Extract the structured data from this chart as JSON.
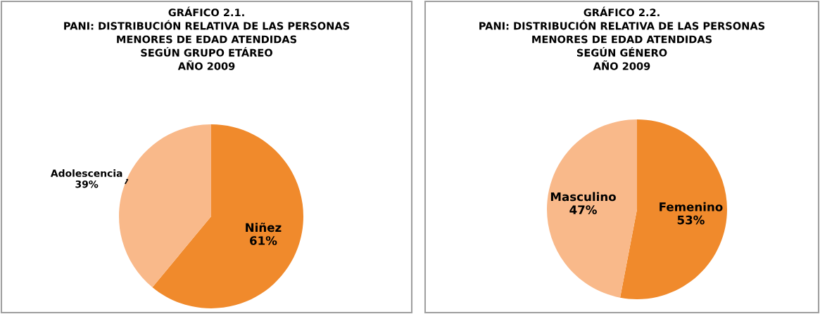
{
  "chart_data": [
    {
      "type": "pie",
      "title": "GRÁFICO 2.1.\nPANI: DISTRIBUCIÓN RELATIVA DE LAS PERSONAS\nMENORES DE EDAD ATENDIDAS\nSEGÚN GRUPO ETÁREO\nAÑO 2009",
      "categories": [
        "Niñez",
        "Adolescencia"
      ],
      "values": [
        61,
        39
      ],
      "colors": [
        "#f08a2c",
        "#f9b98a"
      ],
      "value_labels": [
        "61%",
        "39%"
      ],
      "legend": false
    },
    {
      "type": "pie",
      "title": "GRÁFICO 2.2.\nPANI: DISTRIBUCIÓN RELATIVA DE LAS PERSONAS\nMENORES DE EDAD ATENDIDAS\nSEGÚN GÉNERO\nAÑO 2009",
      "categories": [
        "Femenino",
        "Masculino"
      ],
      "values": [
        53,
        47
      ],
      "colors": [
        "#f08a2c",
        "#f9b98a"
      ],
      "value_labels": [
        "53%",
        "47%"
      ],
      "legend": false
    }
  ]
}
